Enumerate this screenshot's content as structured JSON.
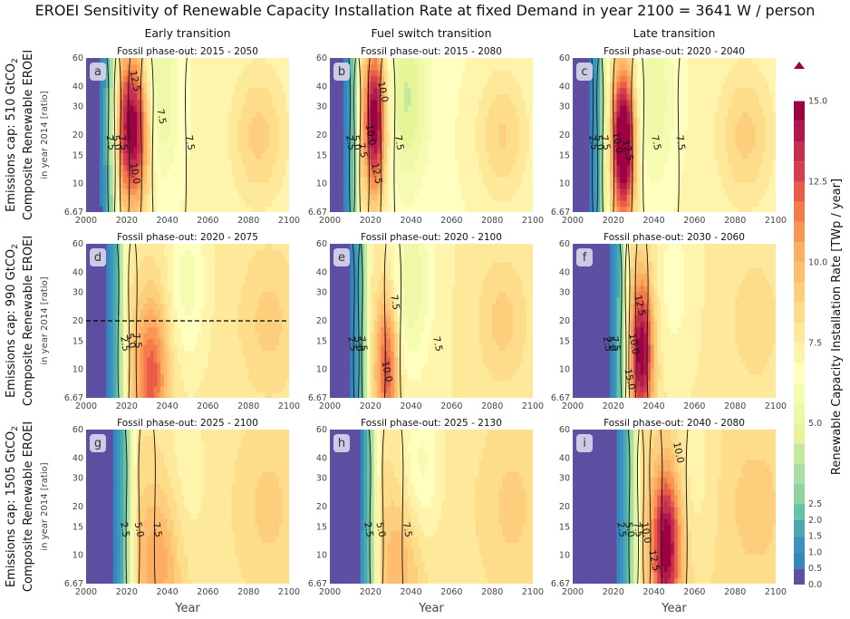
{
  "title": "EROEI Sensitivity of Renewable Capacity Installation Rate at fixed Demand in year 2100 = 3641 W / person",
  "column_titles": [
    "Early transition",
    "Fuel switch transition",
    "Late transition"
  ],
  "row_labels": [
    {
      "cap": "Emissions cap: 510 GtCO",
      "sub": "2",
      "ylabel": "Composite Renewable EROEI",
      "ysub": "in year 2014 [ratio]"
    },
    {
      "cap": "Emissions cap: 990 GtCO",
      "sub": "2",
      "ylabel": "Composite Renewable EROEI",
      "ysub": "in year 2014 [ratio]"
    },
    {
      "cap": "Emissions cap: 1505 GtCO",
      "sub": "2",
      "ylabel": "Composite Renewable EROEI",
      "ysub": "in year 2014 [ratio]"
    }
  ],
  "xlabel": "Year",
  "colorbar": {
    "label": "Renewable Capacity Installation Rate [TWp / year]",
    "ticks": [
      "0.0",
      "0.5",
      "1.0",
      "1.5",
      "2.0",
      "2.5",
      "5.0",
      "7.5",
      "10.0",
      "12.5",
      "15.0"
    ],
    "tick_values": [
      0,
      0.5,
      1,
      1.5,
      2,
      2.5,
      5,
      7.5,
      10,
      12.5,
      15
    ],
    "levels": [
      0,
      0.5,
      1,
      1.5,
      2,
      2.5,
      3.125,
      3.75,
      4.375,
      5,
      5.625,
      6.25,
      6.875,
      7.5,
      8.125,
      8.75,
      9.375,
      10,
      10.625,
      11.25,
      11.875,
      12.5,
      13.125,
      13.75,
      14.375,
      15,
      16
    ],
    "colors": [
      "#5e4fa2",
      "#3288bd",
      "#3b93c0",
      "#4aa9b0",
      "#66c2a5",
      "#8fd2a4",
      "#abdda4",
      "#c4e89e",
      "#e6f598",
      "#eef8a6",
      "#f6fbb2",
      "#ffffbf",
      "#fff4ac",
      "#fee99a",
      "#fedd8a",
      "#fdcf7c",
      "#fdbf6f",
      "#fdae61",
      "#f99656",
      "#f47c4a",
      "#e95c47",
      "#d53e4f",
      "#c52e4d",
      "#b1194d",
      "#9e0142"
    ]
  },
  "chart_data": {
    "type": "heatmap",
    "x_range": [
      2000,
      2100
    ],
    "x_ticks": [
      2000,
      2020,
      2040,
      2060,
      2080,
      2100
    ],
    "y_scale": "log",
    "y_range": [
      6.67,
      60
    ],
    "y_ticks": [
      "6.67",
      "10",
      "15",
      "20",
      "30",
      "40",
      "60"
    ],
    "y_tick_values": [
      6.67,
      10,
      15,
      20,
      30,
      40,
      60
    ],
    "panels": [
      {
        "letter": "a",
        "subtitle": "Fossil phase-out: 2015 - 2050",
        "contours": [
          "2.5",
          "5.0",
          "7.5",
          "10.0",
          "12.5",
          "7.5",
          "7.5"
        ]
      },
      {
        "letter": "b",
        "subtitle": "Fossil phase-out: 2015 - 2080",
        "contours": [
          "2.5",
          "5.0",
          "7.5",
          "10.0",
          "12.5",
          "10.0",
          "7.5"
        ]
      },
      {
        "letter": "c",
        "subtitle": "Fossil phase-out: 2020 - 2040",
        "contours": [
          "2.5",
          "5.0",
          "7.5",
          "10.0",
          "12.5",
          "7.5",
          "7.5"
        ]
      },
      {
        "letter": "d",
        "subtitle": "Fossil phase-out: 2020 - 2075",
        "contours": [
          "2.5",
          "5.0",
          "7.5"
        ],
        "reference_line": 20
      },
      {
        "letter": "e",
        "subtitle": "Fossil phase-out: 2020 - 2100",
        "contours": [
          "2.5",
          "5.0",
          "7.5",
          "7.5",
          "7.5",
          "10.0"
        ]
      },
      {
        "letter": "f",
        "subtitle": "Fossil phase-out: 2030 - 2060",
        "contours": [
          "2.5",
          "5.0",
          "7.5",
          "10.0",
          "12.5",
          "15.0"
        ]
      },
      {
        "letter": "g",
        "subtitle": "Fossil phase-out: 2025 - 2100",
        "contours": [
          "2.5",
          "5.0",
          "7.5"
        ]
      },
      {
        "letter": "h",
        "subtitle": "Fossil phase-out: 2025 - 2130",
        "contours": [
          "2.5",
          "5.0",
          "7.5"
        ]
      },
      {
        "letter": "i",
        "subtitle": "Fossil phase-out: 2040 - 2080",
        "contours": [
          "2.5",
          "5.0",
          "7.5",
          "10.0",
          "12.5",
          "10.0"
        ]
      }
    ]
  }
}
